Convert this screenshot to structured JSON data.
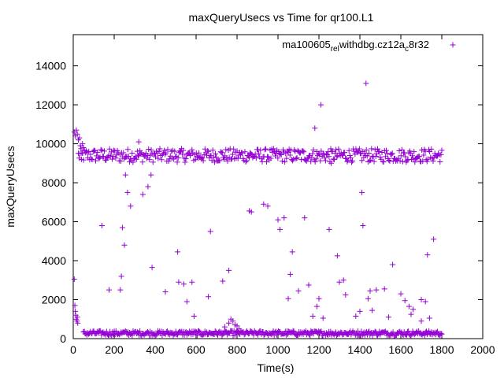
{
  "chart_data": {
    "type": "scatter",
    "title": "maxQueryUsecs vs Time for qr100.L1",
    "xlabel": "Time(s)",
    "ylabel": "maxQueryUsecs",
    "xlim": [
      0,
      2000
    ],
    "ylim": [
      0,
      15600
    ],
    "xticks": [
      0,
      200,
      400,
      600,
      800,
      1000,
      1200,
      1400,
      1600,
      1800,
      2000
    ],
    "yticks": [
      0,
      2000,
      4000,
      6000,
      8000,
      10000,
      12000,
      14000
    ],
    "grid": false,
    "legend_position": "top-right",
    "marker": "+",
    "series": [
      {
        "name": "ma100605_rel_withdbg.cz12a_c8r32",
        "legend_text": {
          "part1": "ma100605",
          "sub1": "rel",
          "part2": "withdbg.cz12a",
          "sub2": "c",
          "part3": "8r32"
        },
        "color": "#9400d3",
        "data": {
          "band_upper": {
            "x_range": [
              25,
              1800
            ],
            "y_center": 9400,
            "y_spread": 350,
            "count": 420
          },
          "band_lower": {
            "x_range": [
              50,
              1800
            ],
            "y_center": 280,
            "y_spread": 120,
            "count": 420
          },
          "startup_high": [
            [
              5,
              10600
            ],
            [
              10,
              10400
            ],
            [
              15,
              10700
            ],
            [
              20,
              10500
            ],
            [
              25,
              10200
            ],
            [
              30,
              10300
            ],
            [
              35,
              9900
            ]
          ],
          "startup_low": [
            [
              5,
              3050
            ],
            [
              8,
              1700
            ],
            [
              10,
              1400
            ],
            [
              12,
              1200
            ],
            [
              15,
              1000
            ],
            [
              18,
              900
            ],
            [
              20,
              1100
            ],
            [
              22,
              800
            ]
          ],
          "startup_dip": [
            [
              40,
              9200
            ],
            [
              45,
              10000
            ],
            [
              50,
              9800
            ]
          ],
          "bump_near_780": [
            [
              740,
              600
            ],
            [
              760,
              800
            ],
            [
              770,
              1000
            ],
            [
              780,
              900
            ],
            [
              790,
              700
            ],
            [
              800,
              650
            ],
            [
              810,
              500
            ]
          ],
          "outliers": [
            [
              140,
              5800
            ],
            [
              175,
              2500
            ],
            [
              230,
              2500
            ],
            [
              235,
              3200
            ],
            [
              240,
              5700
            ],
            [
              250,
              4800
            ],
            [
              255,
              8400
            ],
            [
              265,
              7500
            ],
            [
              280,
              6800
            ],
            [
              320,
              10100
            ],
            [
              340,
              7400
            ],
            [
              365,
              7800
            ],
            [
              380,
              8400
            ],
            [
              385,
              3650
            ],
            [
              450,
              2400
            ],
            [
              510,
              4450
            ],
            [
              515,
              2900
            ],
            [
              540,
              2800
            ],
            [
              555,
              1900
            ],
            [
              580,
              2900
            ],
            [
              590,
              1150
            ],
            [
              660,
              2150
            ],
            [
              670,
              5500
            ],
            [
              730,
              2950
            ],
            [
              760,
              3500
            ],
            [
              860,
              6550
            ],
            [
              870,
              6500
            ],
            [
              930,
              6900
            ],
            [
              950,
              6800
            ],
            [
              1000,
              6100
            ],
            [
              1030,
              6200
            ],
            [
              1010,
              5600
            ],
            [
              1050,
              2050
            ],
            [
              1060,
              3300
            ],
            [
              1070,
              4450
            ],
            [
              1100,
              2450
            ],
            [
              1130,
              6200
            ],
            [
              1150,
              2750
            ],
            [
              1170,
              1150
            ],
            [
              1180,
              10800
            ],
            [
              1190,
              1650
            ],
            [
              1200,
              2050
            ],
            [
              1210,
              12000
            ],
            [
              1220,
              1050
            ],
            [
              1250,
              5600
            ],
            [
              1260,
              9000
            ],
            [
              1290,
              4250
            ],
            [
              1300,
              2900
            ],
            [
              1320,
              3000
            ],
            [
              1330,
              2250
            ],
            [
              1380,
              1150
            ],
            [
              1400,
              1400
            ],
            [
              1410,
              7500
            ],
            [
              1415,
              5800
            ],
            [
              1430,
              13100
            ],
            [
              1440,
              2050
            ],
            [
              1450,
              2450
            ],
            [
              1460,
              1450
            ],
            [
              1480,
              2500
            ],
            [
              1520,
              2550
            ],
            [
              1540,
              1100
            ],
            [
              1560,
              3800
            ],
            [
              1600,
              2300
            ],
            [
              1620,
              1950
            ],
            [
              1640,
              1650
            ],
            [
              1650,
              1250
            ],
            [
              1660,
              1500
            ],
            [
              1700,
              2000
            ],
            [
              1720,
              1900
            ],
            [
              1730,
              4300
            ],
            [
              1740,
              1050
            ],
            [
              1760,
              5100
            ],
            [
              1700,
              900
            ]
          ]
        }
      }
    ]
  }
}
